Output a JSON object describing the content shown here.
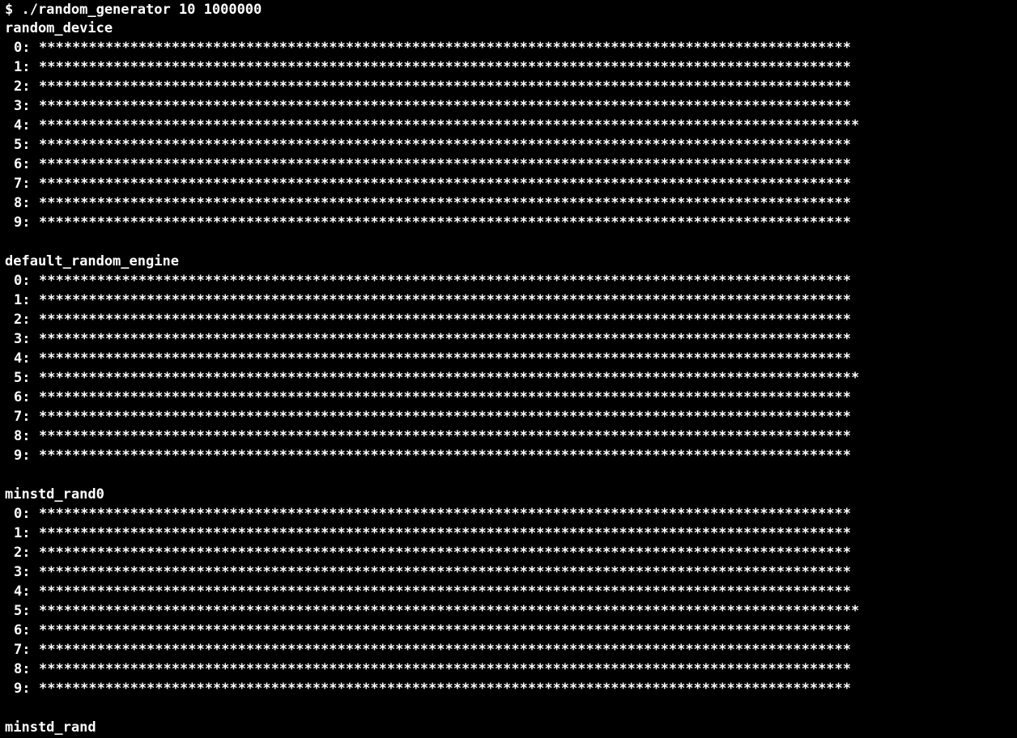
{
  "command": "$ ./random_generator 10 1000000",
  "sections": [
    {
      "name": "random_device",
      "rows": [
        {
          "label": "0:",
          "bar": "**************************************************************************************************"
        },
        {
          "label": "1:",
          "bar": "**************************************************************************************************"
        },
        {
          "label": "2:",
          "bar": "**************************************************************************************************"
        },
        {
          "label": "3:",
          "bar": "**************************************************************************************************"
        },
        {
          "label": "4:",
          "bar": "***************************************************************************************************"
        },
        {
          "label": "5:",
          "bar": "**************************************************************************************************"
        },
        {
          "label": "6:",
          "bar": "**************************************************************************************************"
        },
        {
          "label": "7:",
          "bar": "**************************************************************************************************"
        },
        {
          "label": "8:",
          "bar": "**************************************************************************************************"
        },
        {
          "label": "9:",
          "bar": "**************************************************************************************************"
        }
      ]
    },
    {
      "name": "default_random_engine",
      "rows": [
        {
          "label": "0:",
          "bar": "**************************************************************************************************"
        },
        {
          "label": "1:",
          "bar": "**************************************************************************************************"
        },
        {
          "label": "2:",
          "bar": "**************************************************************************************************"
        },
        {
          "label": "3:",
          "bar": "**************************************************************************************************"
        },
        {
          "label": "4:",
          "bar": "**************************************************************************************************"
        },
        {
          "label": "5:",
          "bar": "***************************************************************************************************"
        },
        {
          "label": "6:",
          "bar": "**************************************************************************************************"
        },
        {
          "label": "7:",
          "bar": "**************************************************************************************************"
        },
        {
          "label": "8:",
          "bar": "**************************************************************************************************"
        },
        {
          "label": "9:",
          "bar": "**************************************************************************************************"
        }
      ]
    },
    {
      "name": "minstd_rand0",
      "rows": [
        {
          "label": "0:",
          "bar": "**************************************************************************************************"
        },
        {
          "label": "1:",
          "bar": "**************************************************************************************************"
        },
        {
          "label": "2:",
          "bar": "**************************************************************************************************"
        },
        {
          "label": "3:",
          "bar": "**************************************************************************************************"
        },
        {
          "label": "4:",
          "bar": "**************************************************************************************************"
        },
        {
          "label": "5:",
          "bar": "***************************************************************************************************"
        },
        {
          "label": "6:",
          "bar": "**************************************************************************************************"
        },
        {
          "label": "7:",
          "bar": "**************************************************************************************************"
        },
        {
          "label": "8:",
          "bar": "**************************************************************************************************"
        },
        {
          "label": "9:",
          "bar": "**************************************************************************************************"
        }
      ]
    },
    {
      "name": "minstd_rand",
      "rows": []
    }
  ]
}
